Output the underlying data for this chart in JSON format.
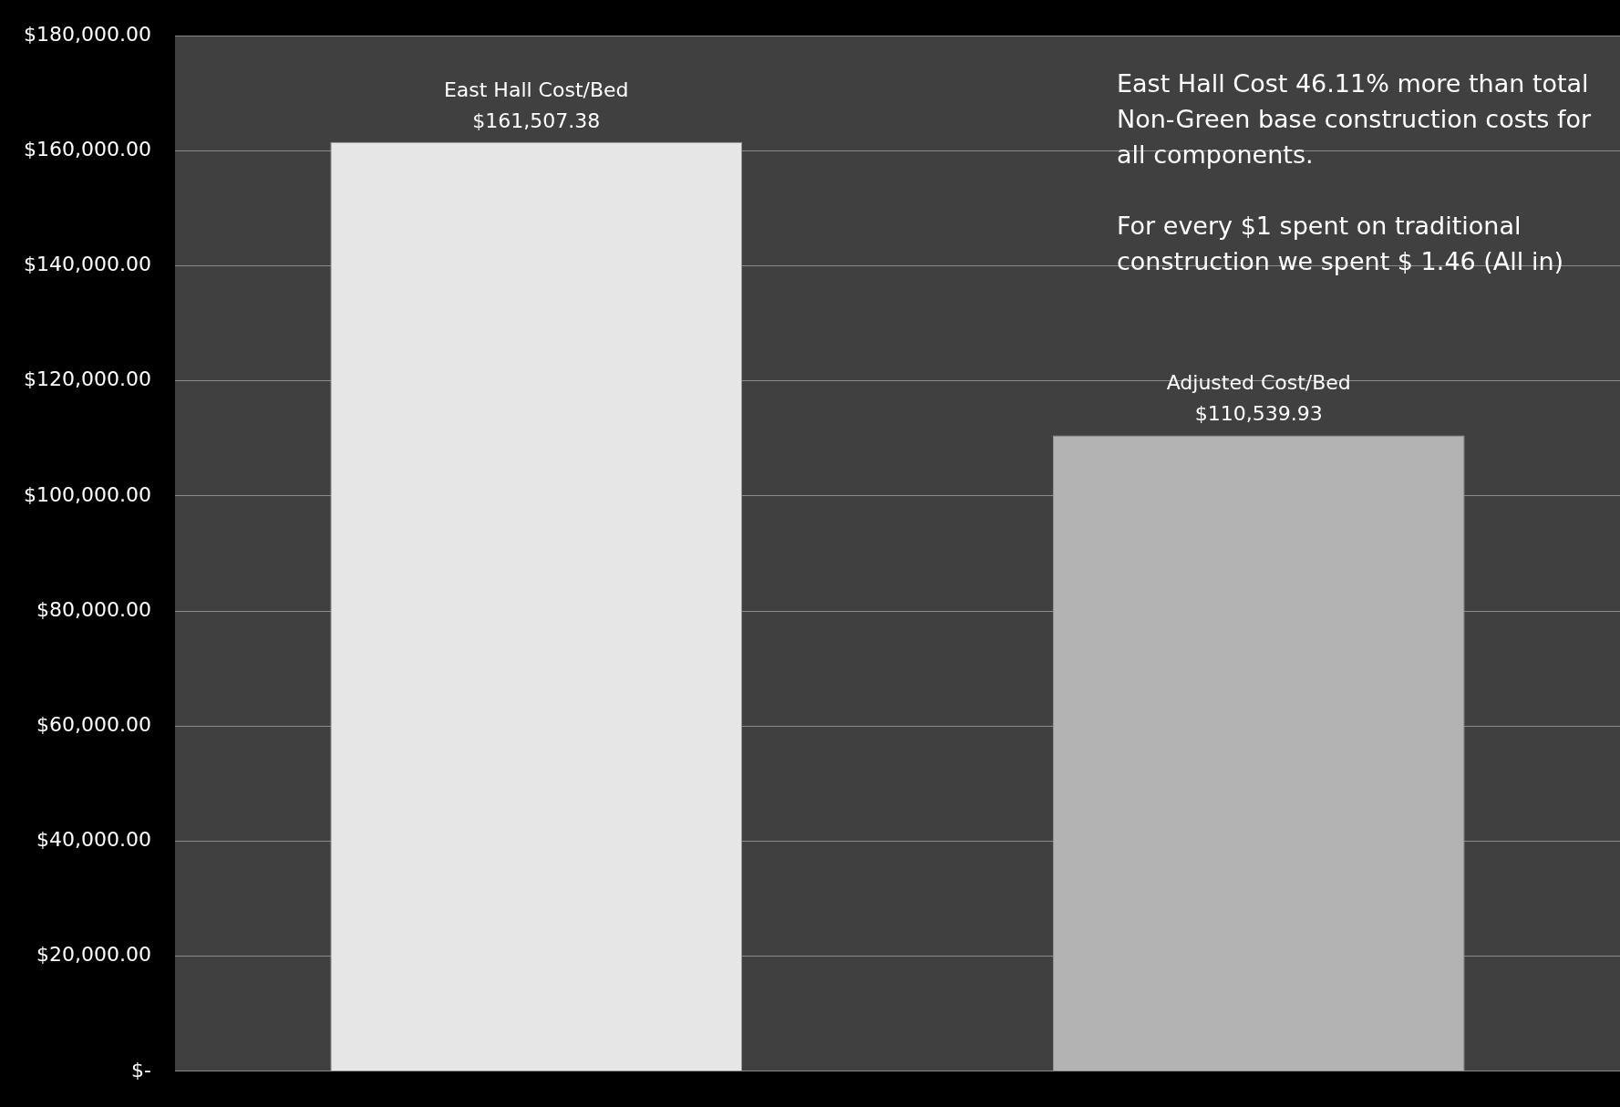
{
  "chart_data": {
    "type": "bar",
    "categories": [
      "East Hall Cost/Bed",
      "Adjusted Cost/Bed"
    ],
    "values": [
      161507.38,
      110539.93
    ],
    "colors": [
      "#e6e6e6",
      "#b3b3b3"
    ],
    "value_labels": [
      "$161,507.38",
      "$110,539.93"
    ],
    "ylim": [
      0,
      180000
    ],
    "yticks": [
      {
        "value": 0,
        "label": "$-"
      },
      {
        "value": 20000,
        "label": "$20,000.00"
      },
      {
        "value": 40000,
        "label": "$40,000.00"
      },
      {
        "value": 60000,
        "label": "$60,000.00"
      },
      {
        "value": 80000,
        "label": "$80,000.00"
      },
      {
        "value": 100000,
        "label": "$100,000.00"
      },
      {
        "value": 120000,
        "label": "$120,000.00"
      },
      {
        "value": 140000,
        "label": "$140,000.00"
      },
      {
        "value": 160000,
        "label": "$160,000.00"
      },
      {
        "value": 180000,
        "label": "$180,000.00"
      }
    ],
    "grid": "y",
    "legend": false,
    "annotations": [
      "East Hall Cost 46.11% more than total Non-Green base construction costs for all components.",
      "For every $1 spent on traditional construction we spent $ 1.46  (All in)"
    ]
  }
}
